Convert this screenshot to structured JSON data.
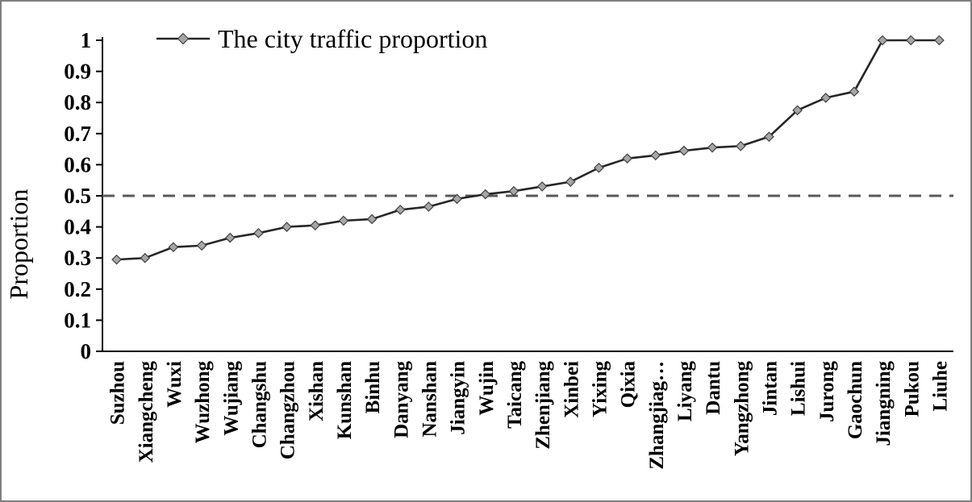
{
  "chart_data": {
    "type": "line",
    "title": "",
    "legend": "The city traffic proportion",
    "legend_position": "top-left-inside",
    "xlabel": "",
    "ylabel": "Proportion",
    "ylim": [
      0,
      1
    ],
    "ytick_labels": [
      "0",
      "0.1",
      "0.2",
      "0.3",
      "0.4",
      "0.5",
      "0.6",
      "0.7",
      "0.8",
      "0.9",
      "1"
    ],
    "yticks": [
      0,
      0.1,
      0.2,
      0.3,
      0.4,
      0.5,
      0.6,
      0.7,
      0.8,
      0.9,
      1
    ],
    "grid": false,
    "reference_line_y": 0.5,
    "categories": [
      "Suzhou",
      "Xiangcheng",
      "Wuxi",
      "Wuzhong",
      "Wujiang",
      "Changshu",
      "Changzhou",
      "Xishan",
      "Kunshan",
      "Binhu",
      "Danyang",
      "Nanshan",
      "Jiangyin",
      "Wujin",
      "Taicang",
      "Zhenjiang",
      "Xinbei",
      "Yixing",
      "Qixia",
      "Zhangjiag…",
      "Liyang",
      "Dantu",
      "Yangzhong",
      "Jintan",
      "Lishui",
      "Jurong",
      "Gaochun",
      "Jiangning",
      "Pukou",
      "Liuhe"
    ],
    "values": [
      0.295,
      0.3,
      0.335,
      0.34,
      0.365,
      0.38,
      0.4,
      0.405,
      0.42,
      0.425,
      0.455,
      0.465,
      0.49,
      0.505,
      0.515,
      0.53,
      0.545,
      0.59,
      0.62,
      0.63,
      0.645,
      0.655,
      0.66,
      0.69,
      0.775,
      0.815,
      0.835,
      1.0,
      1.0,
      1.0
    ],
    "colors": {
      "series_line": "#262626",
      "marker_fill": "#a6a6a6",
      "marker_stroke": "#404040",
      "reference_line": "#595959",
      "axis": "#000000",
      "text": "#000000",
      "frame_border": "#7f7f7f"
    },
    "marker": "diamond"
  }
}
